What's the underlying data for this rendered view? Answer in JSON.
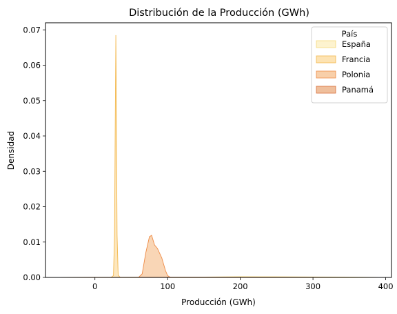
{
  "chart_data": {
    "type": "area",
    "title": "Distribución de la Producción (GWh)",
    "xlabel": "Producción (GWh)",
    "ylabel": "Densidad",
    "xlim": [
      -68,
      408
    ],
    "ylim": [
      0,
      0.072
    ],
    "xticks": [
      0,
      100,
      200,
      300,
      400
    ],
    "yticks": [
      0.0,
      0.01,
      0.02,
      0.03,
      0.04,
      0.05,
      0.06,
      0.07
    ],
    "ytick_labels": [
      "0.00",
      "0.01",
      "0.02",
      "0.03",
      "0.04",
      "0.05",
      "0.06",
      "0.07"
    ],
    "grid": false,
    "legend": {
      "title": "País",
      "placement": "top-right"
    },
    "series": [
      {
        "name": "España",
        "fill": "#fdf3cf",
        "stroke": "#f5d97a",
        "points": [
          [
            -50,
            0
          ],
          [
            20,
            4e-05
          ],
          [
            80,
            8e-05
          ],
          [
            150,
            0.0001
          ],
          [
            200,
            0.0002
          ],
          [
            250,
            0.00018
          ],
          [
            300,
            0.00014
          ],
          [
            350,
            0.0001
          ],
          [
            390,
            0
          ]
        ]
      },
      {
        "name": "Francia",
        "fill": "#fde3b3",
        "stroke": "#f3b84d",
        "points": [
          [
            22,
            0
          ],
          [
            25.5,
            0.0005
          ],
          [
            27,
            0.012
          ],
          [
            28,
            0.045
          ],
          [
            28.8,
            0.0685
          ],
          [
            29.6,
            0.045
          ],
          [
            30.5,
            0.012
          ],
          [
            32,
            0.0006
          ],
          [
            35,
            0
          ]
        ]
      },
      {
        "name": "Polonia",
        "fill": "#f8cfa9",
        "stroke": "#ee8a45",
        "points": [
          [
            60,
            0
          ],
          [
            65,
            0.001
          ],
          [
            70,
            0.007
          ],
          [
            75,
            0.0115
          ],
          [
            78,
            0.0119
          ],
          [
            82,
            0.0092
          ],
          [
            86,
            0.0082
          ],
          [
            92,
            0.0055
          ],
          [
            97,
            0.002
          ],
          [
            100,
            0.0005
          ],
          [
            104,
            0
          ]
        ]
      },
      {
        "name": "Panamá",
        "fill": "#efbf9c",
        "stroke": "#d9703c",
        "points": [
          [
            -50,
            0
          ],
          [
            0,
            3e-05
          ],
          [
            100,
            6e-05
          ],
          [
            200,
            5e-05
          ],
          [
            300,
            4e-05
          ],
          [
            390,
            0
          ]
        ]
      }
    ]
  }
}
